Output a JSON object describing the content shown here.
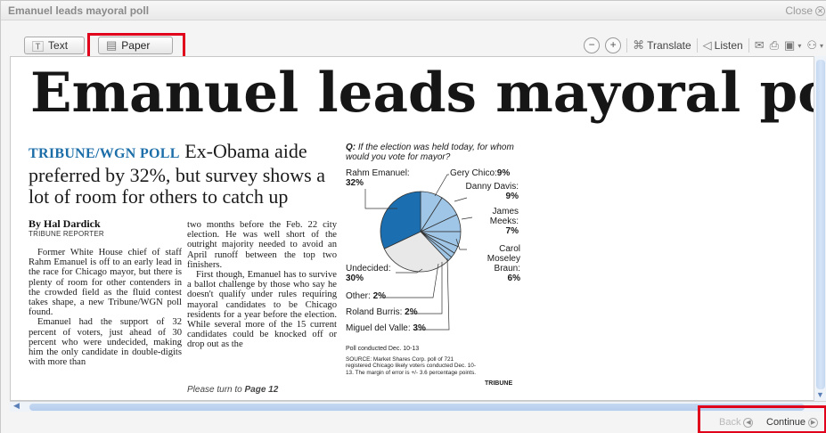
{
  "window": {
    "title": "Emanuel leads mayoral poll",
    "close_label": "Close"
  },
  "toolbar": {
    "text_label": "Text",
    "paper_label": "Paper",
    "translate_label": "Translate",
    "listen_label": "Listen"
  },
  "article": {
    "headline": "Emanuel leads mayoral poll",
    "kicker": "TRIBUNE/WGN POLL",
    "deck": "Ex-Obama aide preferred by 32%, but survey shows a lot of room for others to catch up",
    "byline": "By Hal Dardick",
    "byline_role": "TRIBUNE REPORTER",
    "col1_p1": "Former White House chief of staff Rahm Emanuel is off to an early lead in the race for Chicago mayor, but there is plenty of room for other contenders in the crowded field as the fluid contest takes shape, a new Tribune/WGN poll found.",
    "col1_p2": "Emanuel had the support of 32 percent of voters, just ahead of 30 percent who were undecided, making him the only candidate in double-digits with more than",
    "col2_p1": "two months before the Feb. 22 city election. He was well short of the outright majority needed to avoid an April runoff between the top two finishers.",
    "col2_p2": "First though, Emanuel has to survive a ballot challenge by those who say he doesn't qualify under rules requiring mayoral candidates to be Chicago residents for a year before the election. While several more of the 15 current candidates could be knocked off or drop out as the",
    "continued_prefix": "Please turn to",
    "continued_page": "Page 12"
  },
  "graphic": {
    "question_prefix": "Q:",
    "question": "If the election was held today, for whom would you vote for mayor?",
    "labels": {
      "emanuel_name": "Rahm Emanuel:",
      "emanuel_pct": "32%",
      "chico_name": "Gery Chico:",
      "chico_pct": "9%",
      "davis_name": "Danny Davis:",
      "davis_pct": "9%",
      "meeks_name": "James Meeks:",
      "meeks_pct": "7%",
      "braun_name": "Carol Moseley Braun:",
      "braun_pct": "6%",
      "undecided_name": "Undecided:",
      "undecided_pct": "30%",
      "other_name": "Other:",
      "other_pct": "2%",
      "burris_name": "Roland Burris:",
      "burris_pct": "2%",
      "delvalle_name": "Miguel del Valle:",
      "delvalle_pct": "3%"
    },
    "note": "Poll conducted Dec. 10-13",
    "source": "SOURCE: Market Shares Corp. poll of 721 registered Chicago likely voters conducted Dec. 10-13. The margin of error is +/- 3.6 percentage points.",
    "credit": "TRIBUNE"
  },
  "chart_data": {
    "type": "pie",
    "title": "If the election was held today, for whom would you vote for mayor?",
    "categories": [
      "Rahm Emanuel",
      "Gery Chico",
      "Danny Davis",
      "James Meeks",
      "Carol Moseley Braun",
      "Miguel del Valle",
      "Roland Burris",
      "Other",
      "Undecided"
    ],
    "values": [
      32,
      9,
      9,
      7,
      6,
      3,
      2,
      2,
      30
    ],
    "colors": [
      "#1b6eaf",
      "#9fc6e7",
      "#9fc6e7",
      "#9fc6e7",
      "#9fc6e7",
      "#9fc6e7",
      "#9fc6e7",
      "#9fc6e7",
      "#e8e8e8"
    ]
  },
  "footer": {
    "back_label": "Back",
    "continue_label": "Continue"
  }
}
